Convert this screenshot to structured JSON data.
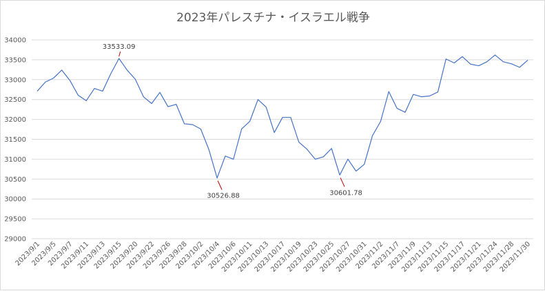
{
  "chart_data": {
    "type": "line",
    "title": "2023年パレスチナ・イスラエル戦争",
    "ylim": [
      29000,
      34000
    ],
    "yticks": [
      29000,
      29500,
      30000,
      30500,
      31000,
      31500,
      32000,
      32500,
      33000,
      33500,
      34000
    ],
    "grid": true,
    "legend": "none",
    "line_color": "#4472c4",
    "grid_color": "#d9d9d9",
    "x": [
      "2023/9/1",
      "2023/9/4",
      "2023/9/5",
      "2023/9/6",
      "2023/9/7",
      "2023/9/8",
      "2023/9/11",
      "2023/9/12",
      "2023/9/13",
      "2023/9/14",
      "2023/9/15",
      "2023/9/19",
      "2023/9/20",
      "2023/9/21",
      "2023/9/22",
      "2023/9/25",
      "2023/9/26",
      "2023/9/27",
      "2023/9/28",
      "2023/9/29",
      "2023/10/2",
      "2023/10/3",
      "2023/10/4",
      "2023/10/5",
      "2023/10/6",
      "2023/10/10",
      "2023/10/11",
      "2023/10/12",
      "2023/10/13",
      "2023/10/16",
      "2023/10/17",
      "2023/10/18",
      "2023/10/19",
      "2023/10/20",
      "2023/10/23",
      "2023/10/24",
      "2023/10/25",
      "2023/10/26",
      "2023/10/27",
      "2023/10/30",
      "2023/10/31",
      "2023/11/1",
      "2023/11/2",
      "2023/11/6",
      "2023/11/7",
      "2023/11/8",
      "2023/11/9",
      "2023/11/10",
      "2023/11/13",
      "2023/11/14",
      "2023/11/15",
      "2023/11/16",
      "2023/11/17",
      "2023/11/20",
      "2023/11/21",
      "2023/11/22",
      "2023/11/24",
      "2023/11/27",
      "2023/11/28",
      "2023/11/29",
      "2023/11/30"
    ],
    "xticks": [
      "2023/9/1",
      "2023/9/5",
      "2023/9/7",
      "2023/9/11",
      "2023/9/13",
      "2023/9/15",
      "2023/9/20",
      "2023/9/22",
      "2023/9/26",
      "2023/9/28",
      "2023/10/2",
      "2023/10/4",
      "2023/10/6",
      "2023/10/11",
      "2023/10/13",
      "2023/10/17",
      "2023/10/19",
      "2023/10/23",
      "2023/10/25",
      "2023/10/27",
      "2023/10/31",
      "2023/11/2",
      "2023/11/7",
      "2023/11/9",
      "2023/11/13",
      "2023/11/15",
      "2023/11/17",
      "2023/11/21",
      "2023/11/24",
      "2023/11/28",
      "2023/11/30"
    ],
    "values": [
      32710,
      32940,
      33040,
      33240,
      32980,
      32610,
      32470,
      32780,
      32710,
      33150,
      33533.09,
      33240,
      33010,
      32570,
      32400,
      32680,
      32320,
      32380,
      31890,
      31870,
      31760,
      31240,
      30526.88,
      31080,
      31000,
      31760,
      31950,
      32500,
      32310,
      31670,
      32050,
      32050,
      31430,
      31250,
      31000,
      31060,
      31270,
      30601.78,
      31000,
      30700,
      30870,
      31590,
      31950,
      32700,
      32280,
      32180,
      32630,
      32570,
      32590,
      32690,
      33520,
      33420,
      33580,
      33390,
      33350,
      33450,
      33620,
      33450,
      33400,
      33310,
      33490
    ],
    "annotations": [
      {
        "label": "33533.09",
        "x": "2023/9/15",
        "value": 33533.09
      },
      {
        "label": "30526.88",
        "x": "2023/10/4",
        "value": 30526.88
      },
      {
        "label": "30601.78",
        "x": "2023/10/26",
        "value": 30601.78
      }
    ]
  }
}
